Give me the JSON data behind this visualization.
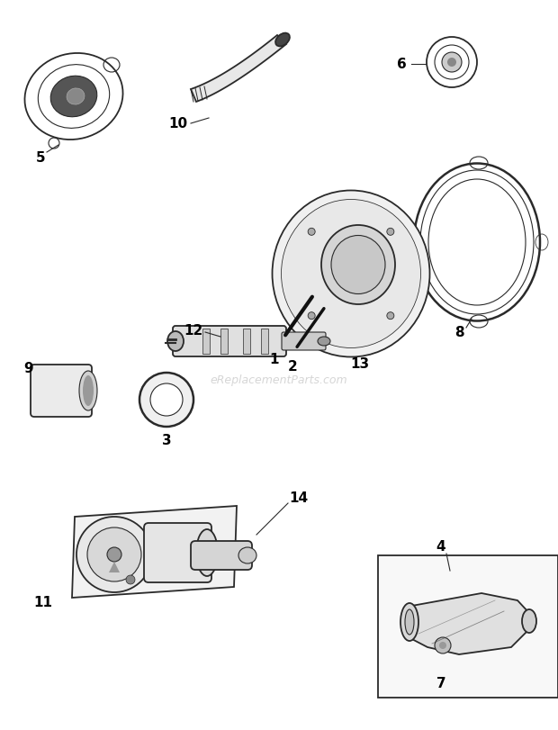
{
  "bg_color": "#ffffff",
  "text_color": "#000000",
  "line_color": "#2a2a2a",
  "watermark": "eReplacementParts.com",
  "figsize": [
    6.2,
    8.12
  ],
  "dpi": 100
}
